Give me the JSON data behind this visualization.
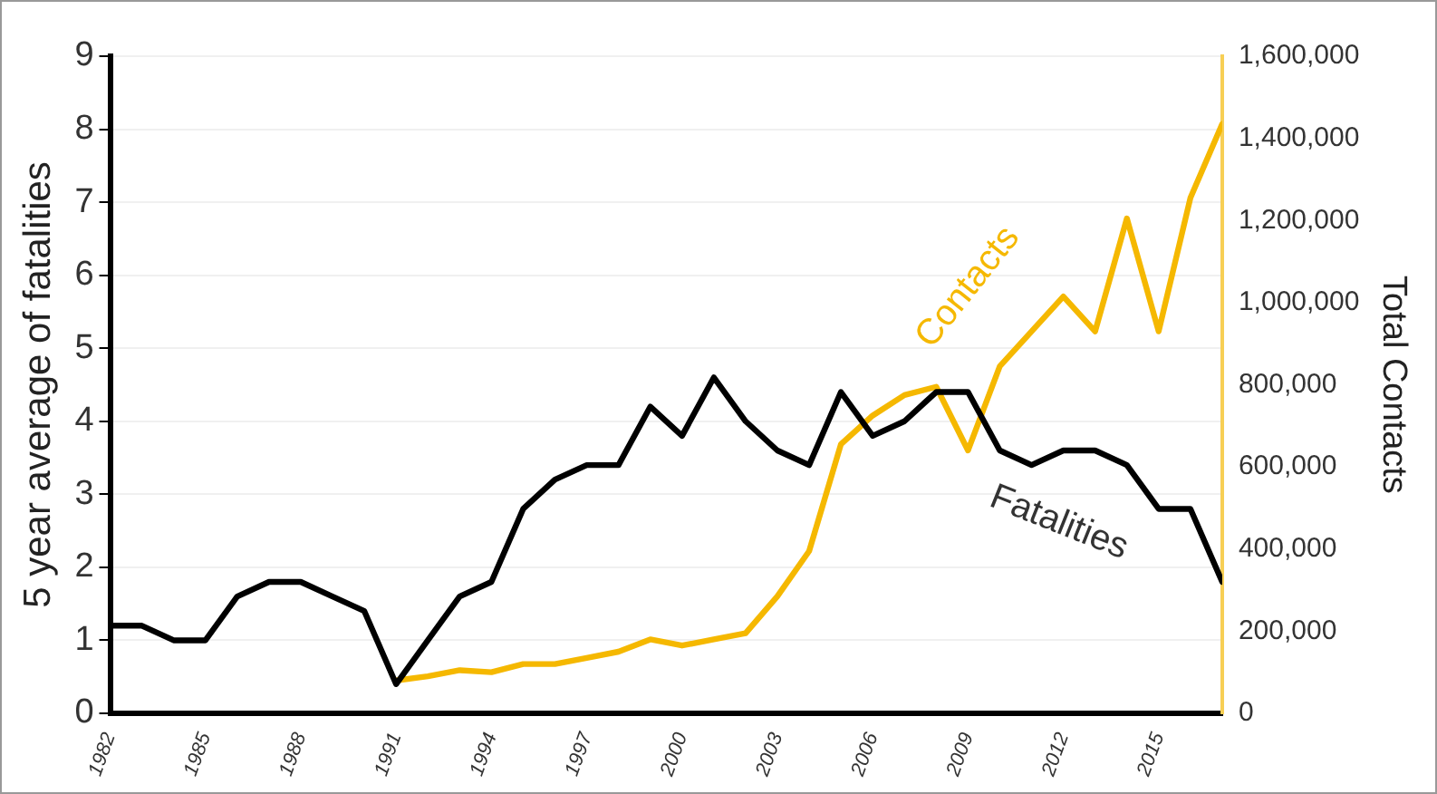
{
  "chart_data": {
    "type": "line",
    "xlabel": null,
    "ylabel": "5 year average of fatalities",
    "y2label": "Total Contacts",
    "x": [
      1982,
      1983,
      1984,
      1985,
      1986,
      1987,
      1988,
      1989,
      1990,
      1991,
      1992,
      1993,
      1994,
      1995,
      1996,
      1997,
      1998,
      1999,
      2000,
      2001,
      2002,
      2003,
      2004,
      2005,
      2006,
      2007,
      2008,
      2009,
      2010,
      2011,
      2012,
      2013,
      2014,
      2015,
      2016,
      2017
    ],
    "series": [
      {
        "name": "Fatalities",
        "color": "#000000",
        "values": [
          1.2,
          1.2,
          1.0,
          1.0,
          1.6,
          1.8,
          1.8,
          1.6,
          1.4,
          0.4,
          1.0,
          1.6,
          1.8,
          2.8,
          3.2,
          3.4,
          3.4,
          4.2,
          3.8,
          4.6,
          4.0,
          3.6,
          3.4,
          4.4,
          3.8,
          4.0,
          4.4,
          4.4,
          3.6,
          3.4,
          3.6,
          3.6,
          3.4,
          2.8,
          2.8,
          1.8
        ]
      },
      {
        "name": "Contacts",
        "color": "#f5b800",
        "axis": "y2",
        "values": [
          null,
          null,
          null,
          null,
          null,
          null,
          null,
          null,
          null,
          80000,
          90000,
          105000,
          100000,
          120000,
          120000,
          135000,
          150000,
          180000,
          165000,
          180000,
          195000,
          285000,
          395000,
          655000,
          725000,
          775000,
          795000,
          640000,
          845000,
          930000,
          1015000,
          930000,
          1205000,
          930000,
          1255000,
          1435000
        ]
      }
    ],
    "xlim": [
      1982,
      2017
    ],
    "xticks": [
      1982,
      1985,
      1988,
      1991,
      1994,
      1997,
      2000,
      2003,
      2006,
      2009,
      2012,
      2015
    ],
    "ylim": [
      0,
      9
    ],
    "yticks": [
      0,
      1,
      2,
      3,
      4,
      5,
      6,
      7,
      8,
      9
    ],
    "y2lim": [
      0,
      1600000
    ],
    "y2ticks": [
      {
        "value": 0,
        "label": "0"
      },
      {
        "value": 200000,
        "label": "200,000"
      },
      {
        "value": 400000,
        "label": "400,000"
      },
      {
        "value": 600000,
        "label": "600,000"
      },
      {
        "value": 800000,
        "label": "800,000"
      },
      {
        "value": 1000000,
        "label": "1,000,000"
      },
      {
        "value": 1200000,
        "label": "1,200,000"
      },
      {
        "value": 1400000,
        "label": "1,400,000"
      },
      {
        "value": 1600000,
        "label": "1,600,000"
      }
    ],
    "grid": "y",
    "legend": false,
    "marker": "none",
    "line_style": "solid"
  }
}
